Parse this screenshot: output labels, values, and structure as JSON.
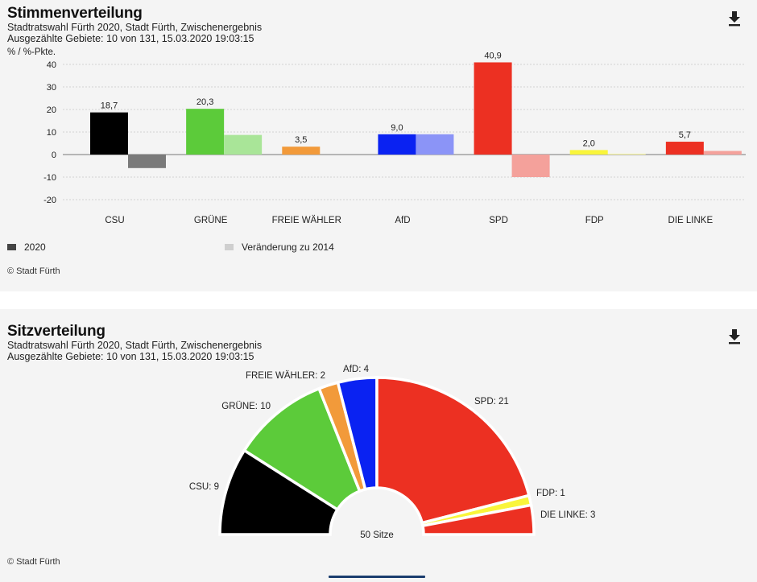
{
  "chart1": {
    "title": "Stimmenverteilung",
    "subtitle1": "Stadtratswahl Fürth 2020, Stadt Fürth, Zwischenergebnis",
    "subtitle2": "Ausgezählte Gebiete: 10 von 131, 15.03.2020 19:03:15",
    "copyright": "© Stadt Fürth",
    "legend": {
      "series1": "2020",
      "series2": "Veränderung zu 2014"
    }
  },
  "chart2": {
    "title": "Sitzverteilung",
    "subtitle1": "Stadtratswahl Fürth 2020, Stadt Fürth, Zwischenergebnis",
    "subtitle2": "Ausgezählte Gebiete: 10 von 131, 15.03.2020 19:03:15",
    "copyright": "© Stadt Fürth",
    "center_label": "50 Sitze"
  },
  "icons": {
    "download": "download-icon"
  },
  "chart_data": [
    {
      "type": "bar",
      "ylabel": "% / %-Pkte.",
      "ylim": [
        -20,
        40
      ],
      "yticks": [
        40,
        30,
        20,
        10,
        0,
        -10,
        -20
      ],
      "categories": [
        "CSU",
        "GRÜNE",
        "FREIE WÄHLER",
        "AfD",
        "SPD",
        "FDP",
        "DIE LINKE"
      ],
      "colors": [
        "#000000",
        "#5ccb3a",
        "#f29a3a",
        "#0a22f2",
        "#ec3022",
        "#f9f53b",
        "#ec3022"
      ],
      "change_colors": [
        "#7a7a7a",
        "#a9e598",
        "#f29a3a",
        "#8b94f7",
        "#f4a19b",
        "#fbf9a6",
        "#f4a19b"
      ],
      "series": [
        {
          "name": "2020",
          "values": [
            18.7,
            20.3,
            3.5,
            9.0,
            40.9,
            2.0,
            5.7
          ],
          "labels": [
            "18,7",
            "20,3",
            "3,5",
            "9,0",
            "40,9",
            "2,0",
            "5,7"
          ]
        },
        {
          "name": "Veränderung zu 2014",
          "values": [
            -6.0,
            8.7,
            null,
            9.0,
            -10.0,
            0.4,
            1.6
          ]
        }
      ],
      "legend_position": "bottom-left",
      "grid": true
    },
    {
      "type": "pie",
      "variant": "semicircle",
      "total": 50,
      "categories": [
        "CSU",
        "GRÜNE",
        "FREIE WÄHLER",
        "AfD",
        "SPD",
        "FDP",
        "DIE LINKE"
      ],
      "values": [
        9,
        10,
        2,
        4,
        21,
        1,
        3
      ],
      "labels": [
        "CSU: 9",
        "GRÜNE: 10",
        "FREIE WÄHLER: 2",
        "AfD: 4",
        "SPD: 21",
        "FDP: 1",
        "DIE LINKE: 3"
      ],
      "colors": [
        "#000000",
        "#5ccb3a",
        "#f29a3a",
        "#0a22f2",
        "#ec3022",
        "#f9f53b",
        "#ec3022"
      ]
    }
  ]
}
